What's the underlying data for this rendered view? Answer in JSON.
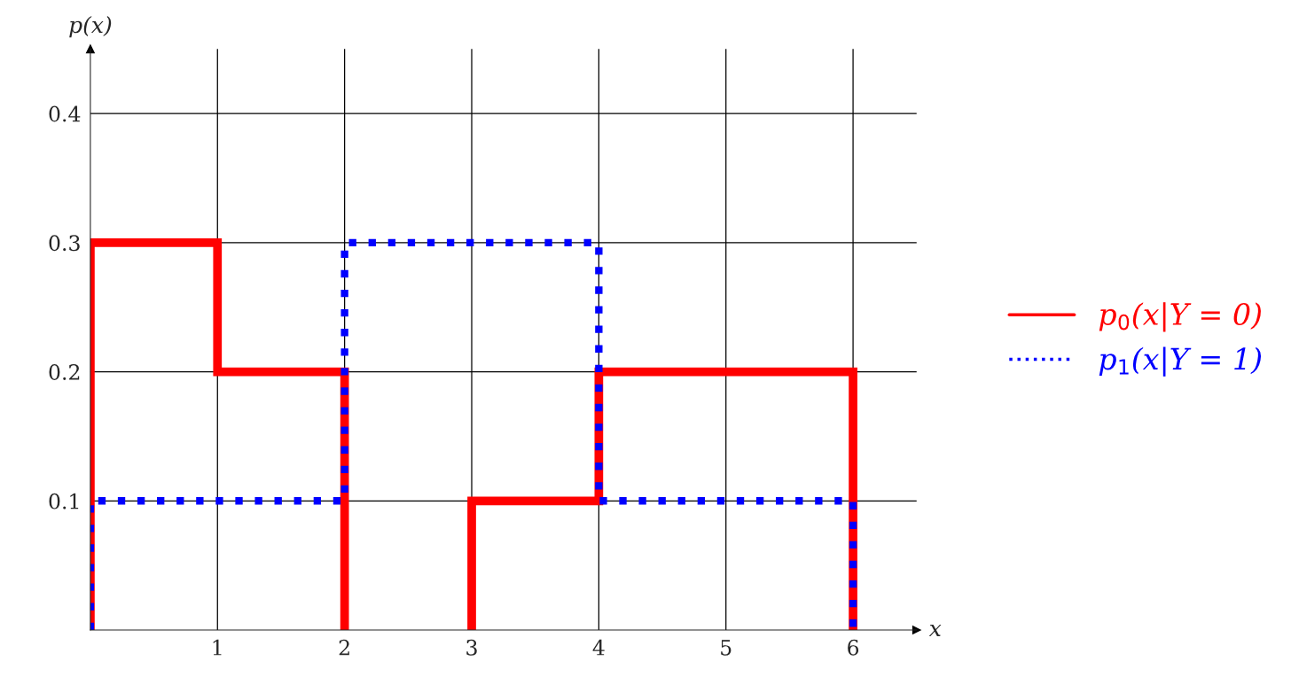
{
  "chart_data": {
    "type": "line",
    "xlabel": "x",
    "ylabel": "p(x)",
    "xlim": [
      0,
      6.5
    ],
    "ylim": [
      0,
      0.45
    ],
    "xticks": [
      1,
      2,
      3,
      4,
      5,
      6
    ],
    "yticks": [
      0.1,
      0.2,
      0.3,
      0.4
    ],
    "grid": true,
    "legend": "right",
    "series": [
      {
        "name": "p$_{0}$(x|Y = 0)",
        "color": "#ff0000",
        "line_style": "solid",
        "x": [
          0,
          0,
          1,
          1,
          2,
          2,
          2.5,
          3,
          3,
          4,
          4,
          6,
          6
        ],
        "values": [
          0,
          0.3,
          0.3,
          0.2,
          0.2,
          0,
          null,
          0,
          0.1,
          0.1,
          0.2,
          0.2,
          0
        ]
      },
      {
        "name": "p$_{1}$(x|Y = 1)",
        "color": "#0000ff",
        "line_style": "dotted",
        "x": [
          0,
          0,
          2,
          2,
          4,
          4,
          6,
          6
        ],
        "values": [
          0,
          0.1,
          0.1,
          0.3,
          0.3,
          0.1,
          0.1,
          0
        ]
      }
    ]
  }
}
